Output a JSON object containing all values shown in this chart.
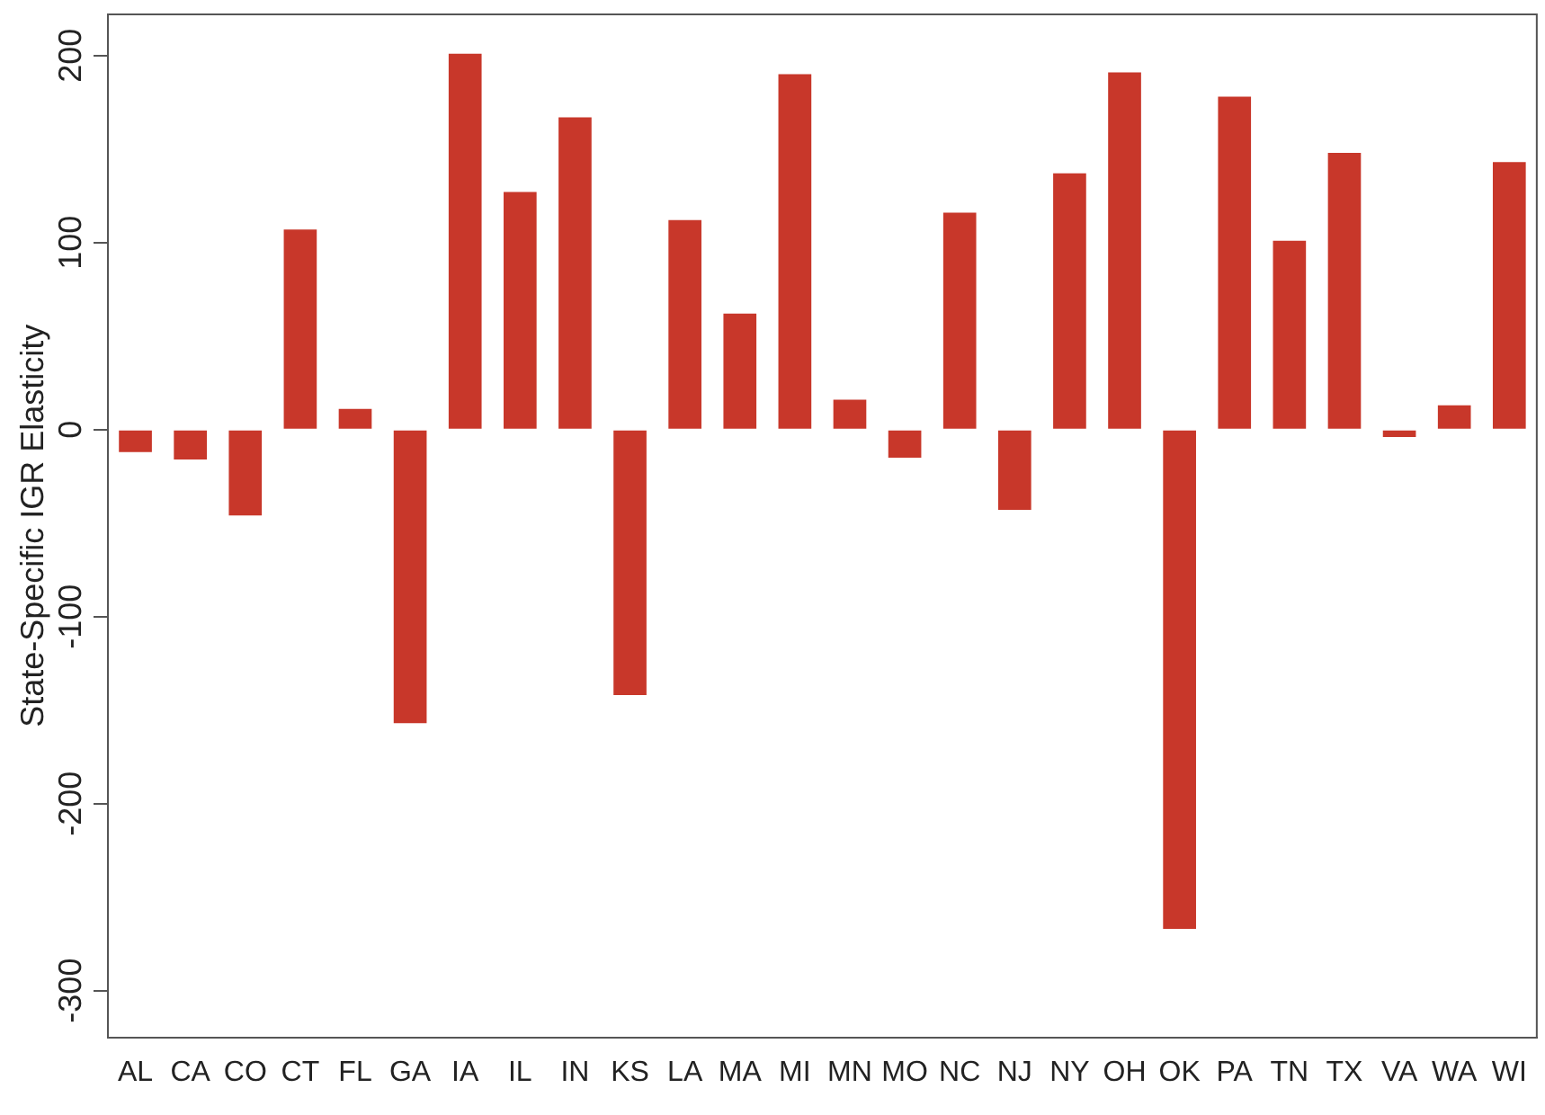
{
  "chart_data": {
    "type": "bar",
    "ylabel": "State-Specific IGR Elasticity",
    "categories": [
      "AL",
      "CA",
      "CO",
      "CT",
      "FL",
      "GA",
      "IA",
      "IL",
      "IN",
      "KS",
      "LA",
      "MA",
      "MI",
      "MN",
      "MO",
      "NC",
      "NJ",
      "NY",
      "OH",
      "OK",
      "PA",
      "TN",
      "TX",
      "VA",
      "WA",
      "WI"
    ],
    "values": [
      -12,
      -16,
      -46,
      107,
      11,
      -157,
      201,
      127,
      167,
      -142,
      112,
      62,
      190,
      16,
      -15,
      116,
      -43,
      137,
      191,
      -267,
      178,
      101,
      148,
      -4,
      13,
      143
    ],
    "color": "#c8372a",
    "ylim": [
      -325,
      222
    ],
    "yticks": [
      -300,
      -200,
      -100,
      0,
      100,
      200
    ],
    "grid": false,
    "legend": false
  }
}
